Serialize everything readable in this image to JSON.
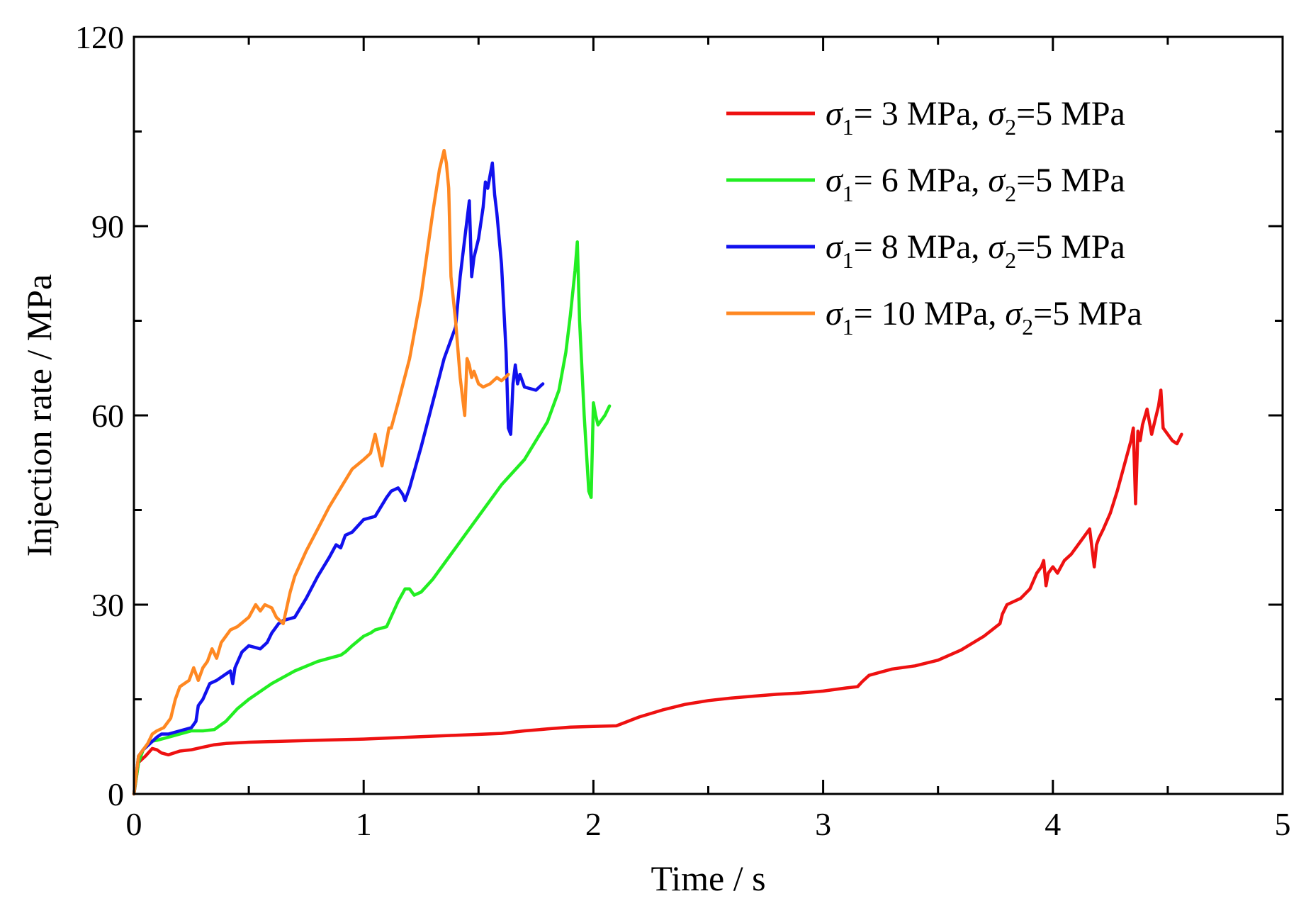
{
  "chart_data": {
    "type": "line",
    "title": "",
    "xlabel": "Time / s",
    "ylabel": "Injection rate / MPa",
    "xlim": [
      0,
      5
    ],
    "ylim": [
      0,
      120
    ],
    "xticks": [
      0,
      1,
      2,
      3,
      4,
      5
    ],
    "yticks": [
      0,
      30,
      60,
      90,
      120
    ],
    "xtick_labels": [
      "0",
      "1",
      "2",
      "3",
      "4",
      "5"
    ],
    "ytick_labels": [
      "0",
      "30",
      "60",
      "90",
      "120"
    ],
    "grid": false,
    "legend_position": "top-right",
    "series": [
      {
        "name": "σ1= 3 MPa, σ2=5 MPa",
        "legend": {
          "s1": "σ",
          "sub1": "1",
          "mid": "= 3 MPa, ",
          "s2": "σ",
          "sub2": "2",
          "tail": "=5 MPa"
        },
        "color": "#ee1111",
        "x": [
          0,
          0.02,
          0.05,
          0.08,
          0.1,
          0.12,
          0.15,
          0.2,
          0.25,
          0.3,
          0.35,
          0.4,
          0.5,
          0.6,
          0.8,
          1.0,
          1.2,
          1.4,
          1.6,
          1.7,
          1.8,
          1.9,
          2.0,
          2.1,
          2.15,
          2.2,
          2.3,
          2.4,
          2.5,
          2.6,
          2.7,
          2.8,
          2.9,
          3.0,
          3.1,
          3.15,
          3.17,
          3.2,
          3.25,
          3.3,
          3.4,
          3.5,
          3.6,
          3.7,
          3.77,
          3.78,
          3.8,
          3.83,
          3.86,
          3.9,
          3.93,
          3.95,
          3.96,
          3.97,
          3.98,
          4.0,
          4.02,
          4.05,
          4.08,
          4.12,
          4.16,
          4.18,
          4.19,
          4.2,
          4.22,
          4.25,
          4.28,
          4.31,
          4.34,
          4.35,
          4.36,
          4.37,
          4.38,
          4.39,
          4.41,
          4.43,
          4.44,
          4.46,
          4.47,
          4.48,
          4.5,
          4.52,
          4.54,
          4.56
        ],
        "values": [
          0,
          5,
          6,
          7.2,
          7,
          6.5,
          6.2,
          6.8,
          7,
          7.4,
          7.8,
          8,
          8.2,
          8.3,
          8.5,
          8.7,
          9,
          9.3,
          9.6,
          10,
          10.3,
          10.6,
          10.7,
          10.8,
          11.5,
          12.2,
          13.3,
          14.2,
          14.8,
          15.2,
          15.5,
          15.8,
          16,
          16.3,
          16.8,
          17,
          17.8,
          18.8,
          19.3,
          19.8,
          20.3,
          21.2,
          22.8,
          25,
          27,
          28.5,
          30,
          30.5,
          31,
          32.5,
          35,
          36,
          37,
          33,
          35,
          36,
          35,
          37,
          38,
          40,
          42,
          36,
          39.5,
          40.5,
          42,
          44.5,
          48,
          52,
          56,
          58,
          46,
          57.5,
          56,
          58.5,
          61,
          57,
          58.5,
          61.5,
          64,
          58,
          57,
          56,
          55.5,
          57
        ]
      },
      {
        "name": "σ1= 6 MPa, σ2=5 MPa",
        "legend": {
          "s1": "σ",
          "sub1": "1",
          "mid": "= 6 MPa, ",
          "s2": "σ",
          "sub2": "2",
          "tail": "=5 MPa"
        },
        "color": "#22ee22",
        "x": [
          0,
          0.02,
          0.04,
          0.07,
          0.1,
          0.15,
          0.2,
          0.25,
          0.3,
          0.35,
          0.4,
          0.45,
          0.5,
          0.6,
          0.7,
          0.8,
          0.85,
          0.9,
          0.92,
          0.95,
          1.0,
          1.03,
          1.05,
          1.1,
          1.15,
          1.18,
          1.2,
          1.22,
          1.25,
          1.3,
          1.4,
          1.5,
          1.6,
          1.7,
          1.8,
          1.85,
          1.88,
          1.9,
          1.92,
          1.93,
          1.94,
          1.96,
          1.98,
          1.99,
          2.0,
          2.01,
          2.02,
          2.03,
          2.05,
          2.07
        ],
        "values": [
          0,
          5,
          7,
          8.3,
          8.5,
          9,
          9.5,
          10,
          10,
          10.2,
          11.5,
          13.5,
          15,
          17.5,
          19.5,
          21,
          21.5,
          22,
          22.5,
          23.5,
          25,
          25.5,
          26,
          26.5,
          30.5,
          32.5,
          32.5,
          31.5,
          32,
          34,
          39,
          44,
          49,
          53,
          59,
          64,
          70,
          76,
          83,
          87.5,
          75,
          60,
          48,
          47,
          62,
          60,
          58.5,
          59,
          60,
          61.5
        ]
      },
      {
        "name": "σ1= 8 MPa, σ2=5 MPa",
        "legend": {
          "s1": "σ",
          "sub1": "1",
          "mid": "= 8 MPa, ",
          "s2": "σ",
          "sub2": "2",
          "tail": "=5 MPa"
        },
        "color": "#1111ee",
        "x": [
          0,
          0.02,
          0.04,
          0.07,
          0.1,
          0.12,
          0.15,
          0.2,
          0.25,
          0.27,
          0.28,
          0.3,
          0.33,
          0.36,
          0.4,
          0.42,
          0.43,
          0.44,
          0.47,
          0.5,
          0.55,
          0.58,
          0.6,
          0.63,
          0.65,
          0.7,
          0.75,
          0.8,
          0.85,
          0.88,
          0.9,
          0.92,
          0.95,
          1.0,
          1.05,
          1.1,
          1.12,
          1.15,
          1.17,
          1.18,
          1.2,
          1.25,
          1.3,
          1.35,
          1.4,
          1.42,
          1.44,
          1.46,
          1.47,
          1.48,
          1.5,
          1.52,
          1.53,
          1.54,
          1.55,
          1.56,
          1.57,
          1.58,
          1.6,
          1.62,
          1.63,
          1.64,
          1.65,
          1.66,
          1.67,
          1.68,
          1.7,
          1.75,
          1.78
        ],
        "values": [
          0,
          6,
          7,
          8,
          9,
          9.5,
          9.5,
          10,
          10.5,
          11.5,
          14,
          15,
          17.5,
          18,
          19,
          19.5,
          17.5,
          20,
          22.5,
          23.5,
          23,
          24,
          25.5,
          27,
          27.5,
          28,
          31,
          34.5,
          37.5,
          39.5,
          39,
          41,
          41.5,
          43.5,
          44,
          47,
          48,
          48.5,
          47.5,
          46.5,
          48.5,
          55,
          62,
          69,
          74,
          82,
          88,
          94,
          82,
          85,
          88,
          93,
          97,
          96,
          98,
          100,
          95,
          92,
          84,
          70,
          58,
          57,
          65,
          68,
          65,
          66.5,
          64.5,
          64,
          65
        ]
      },
      {
        "name": "σ1= 10 MPa, σ2=5 MPa",
        "legend": {
          "s1": "σ",
          "sub1": "1",
          "mid": "= 10 MPa, ",
          "s2": "σ",
          "sub2": "2",
          "tail": "=5 MPa"
        },
        "color": "#ff8822",
        "x": [
          0,
          0.02,
          0.04,
          0.06,
          0.08,
          0.1,
          0.13,
          0.16,
          0.18,
          0.2,
          0.22,
          0.24,
          0.26,
          0.28,
          0.3,
          0.32,
          0.34,
          0.36,
          0.38,
          0.4,
          0.42,
          0.45,
          0.5,
          0.53,
          0.55,
          0.57,
          0.6,
          0.62,
          0.65,
          0.68,
          0.7,
          0.75,
          0.8,
          0.85,
          0.9,
          0.95,
          1.0,
          1.03,
          1.05,
          1.08,
          1.1,
          1.11,
          1.12,
          1.15,
          1.2,
          1.25,
          1.3,
          1.33,
          1.35,
          1.36,
          1.37,
          1.38,
          1.4,
          1.42,
          1.44,
          1.45,
          1.46,
          1.47,
          1.48,
          1.5,
          1.52,
          1.55,
          1.58,
          1.6,
          1.63
        ],
        "values": [
          0,
          6,
          7,
          8,
          9.5,
          10,
          10.5,
          12,
          15,
          17,
          17.5,
          18,
          20,
          18,
          20,
          21,
          23,
          21.5,
          24,
          25,
          26,
          26.5,
          28,
          30,
          29,
          30,
          29.5,
          28,
          27,
          32,
          34.5,
          38.5,
          42,
          45.5,
          48.5,
          51.5,
          53,
          54,
          57,
          52,
          56,
          58,
          58,
          62,
          69,
          79,
          92,
          99,
          102,
          100,
          96,
          82,
          75,
          66,
          60,
          69,
          68,
          66,
          67,
          65,
          64.5,
          65,
          66,
          65.5,
          66.5
        ]
      }
    ]
  }
}
